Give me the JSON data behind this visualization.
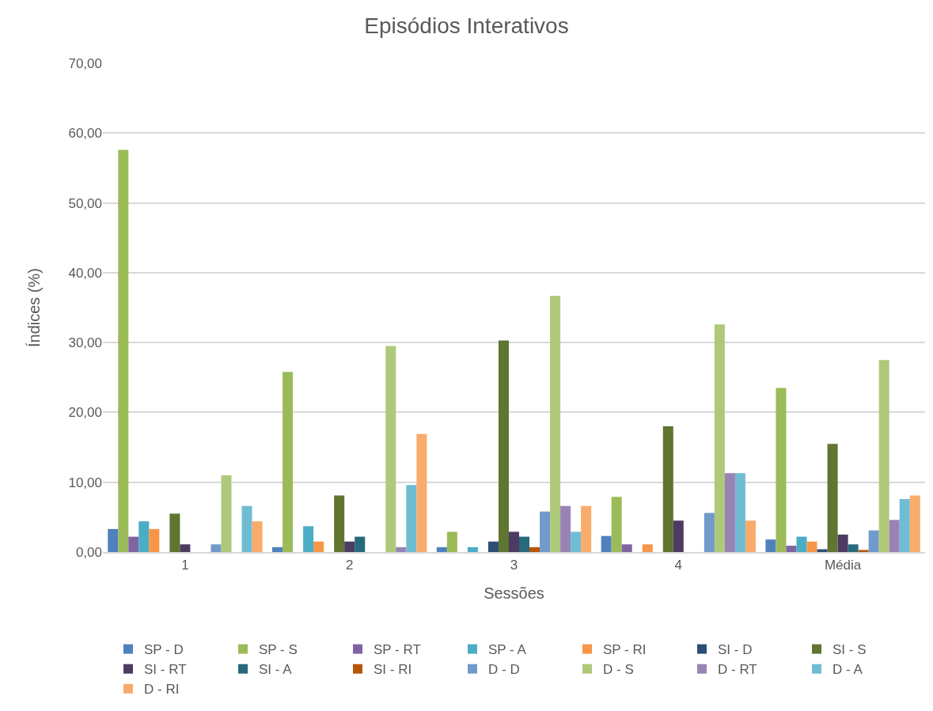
{
  "chart_data": {
    "type": "bar",
    "title": "Episódios Interativos",
    "xlabel": "Sessões",
    "ylabel": "Índices (%)",
    "categories": [
      "1",
      "2",
      "3",
      "4",
      "Média"
    ],
    "ylim": [
      0,
      70
    ],
    "yticks": [
      {
        "value": 0,
        "label": "0,00"
      },
      {
        "value": 10,
        "label": "10,00"
      },
      {
        "value": 20,
        "label": "20,00"
      },
      {
        "value": 30,
        "label": "30,00"
      },
      {
        "value": 40,
        "label": "40,00"
      },
      {
        "value": 50,
        "label": "50,00"
      },
      {
        "value": 60,
        "label": "60,00"
      },
      {
        "value": 70,
        "label": "70,00"
      }
    ],
    "grid": "y",
    "legend": "bottom",
    "series": [
      {
        "name": "SP - D",
        "color": "#4f81bd",
        "values": [
          3.3,
          0.7,
          0.7,
          2.3,
          1.8
        ]
      },
      {
        "name": "SP - S",
        "color": "#9bbb59",
        "values": [
          57.6,
          25.8,
          2.9,
          7.9,
          23.5
        ]
      },
      {
        "name": "SP - RT",
        "color": "#8064a2",
        "values": [
          2.2,
          0,
          0,
          1.1,
          0.9
        ]
      },
      {
        "name": "SP - A",
        "color": "#4bacc6",
        "values": [
          4.4,
          3.7,
          0.7,
          0,
          2.2
        ]
      },
      {
        "name": "SP - RI",
        "color": "#f79646",
        "values": [
          3.3,
          1.5,
          0,
          1.1,
          1.5
        ]
      },
      {
        "name": "SI - D",
        "color": "#2c4d75",
        "values": [
          0,
          0,
          1.5,
          0,
          0.4
        ]
      },
      {
        "name": "SI - S",
        "color": "#5f7530",
        "values": [
          5.5,
          8.1,
          30.3,
          18.0,
          15.5
        ]
      },
      {
        "name": "SI - RT",
        "color": "#4d3b62",
        "values": [
          1.1,
          1.5,
          2.9,
          4.5,
          2.5
        ]
      },
      {
        "name": "SI - A",
        "color": "#276a7c",
        "values": [
          0,
          2.2,
          2.2,
          0,
          1.1
        ]
      },
      {
        "name": "SI - RI",
        "color": "#b65708",
        "values": [
          0,
          0,
          0.7,
          0,
          0.3
        ]
      },
      {
        "name": "D - D",
        "color": "#729aca",
        "values": [
          1.1,
          0,
          5.8,
          5.6,
          3.1
        ]
      },
      {
        "name": "D - S",
        "color": "#afc97a",
        "values": [
          11.0,
          29.5,
          36.7,
          32.6,
          27.5
        ]
      },
      {
        "name": "D - RT",
        "color": "#9983b5",
        "values": [
          0,
          0.7,
          6.6,
          11.3,
          4.6
        ]
      },
      {
        "name": "D - A",
        "color": "#6fbdd2",
        "values": [
          6.6,
          9.6,
          2.9,
          11.3,
          7.6
        ]
      },
      {
        "name": "D - RI",
        "color": "#f9ab6b",
        "values": [
          4.4,
          16.9,
          6.6,
          4.5,
          8.1
        ]
      }
    ]
  }
}
